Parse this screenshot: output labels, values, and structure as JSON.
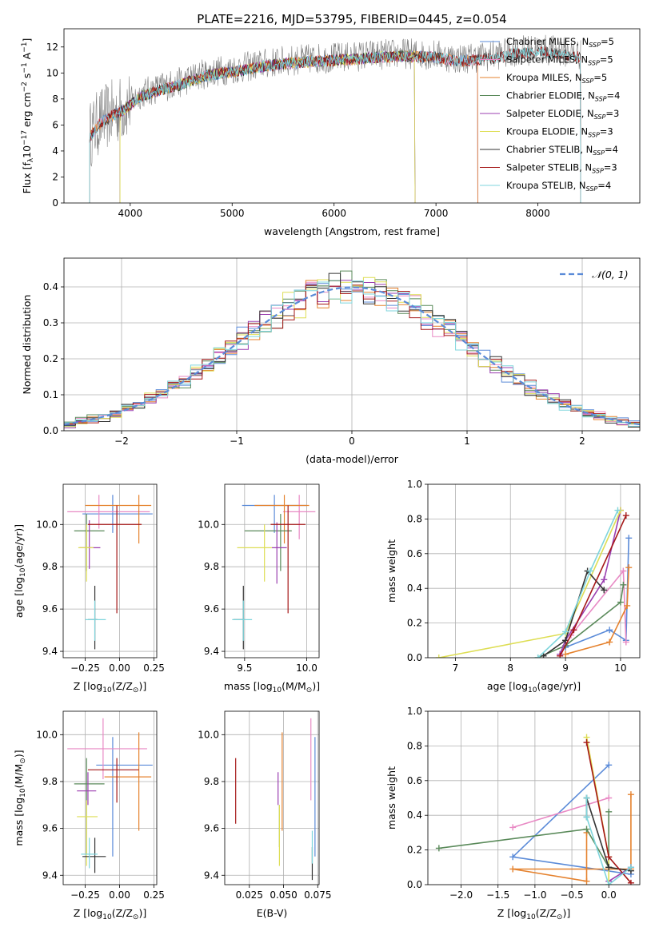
{
  "figure": {
    "title": "PLATE=2216, MJD=53795, FIBERID=0445, z=0.054"
  },
  "series_styles": [
    {
      "name": "Chabrier MILES",
      "nssp": "5",
      "color": "#5b8bd8"
    },
    {
      "name": "Salpeter MILES",
      "nssp": "5",
      "color": "#e889c4"
    },
    {
      "name": "Kroupa MILES",
      "nssp": "5",
      "color": "#e5822e"
    },
    {
      "name": "Chabrier ELODIE",
      "nssp": "4",
      "color": "#5a8a5a"
    },
    {
      "name": "Salpeter ELODIE",
      "nssp": "3",
      "color": "#9b3fb0"
    },
    {
      "name": "Kroupa ELODIE",
      "nssp": "3",
      "color": "#dede55"
    },
    {
      "name": "Chabrier STELIB",
      "nssp": "4",
      "color": "#333333"
    },
    {
      "name": "Salpeter STELIB",
      "nssp": "3",
      "color": "#a51818"
    },
    {
      "name": "Kroupa STELIB",
      "nssp": "4",
      "color": "#7fd5dc"
    }
  ],
  "chart_data": [
    {
      "id": "spectrum",
      "type": "line",
      "xlabel": "wavelength [Angstrom, rest frame]",
      "ylabel_main": "Flux [f",
      "ylabel_unit": "10",
      "ylabel_exp": "−17",
      "ylabel_rest": " erg cm",
      "xlim": [
        3350,
        9000
      ],
      "ylim": [
        0,
        13.4
      ],
      "xticks": [
        "4000",
        "5000",
        "6000",
        "7000",
        "8000"
      ],
      "yticks": [
        "0",
        "2",
        "4",
        "6",
        "8",
        "10",
        "12"
      ],
      "continuum": [
        [
          3600,
          5.2
        ],
        [
          3700,
          6.3
        ],
        [
          3800,
          6.8
        ],
        [
          3950,
          7.4
        ],
        [
          4100,
          8.4
        ],
        [
          4300,
          8.9
        ],
        [
          4500,
          9.3
        ],
        [
          4700,
          9.9
        ],
        [
          4900,
          10.2
        ],
        [
          5100,
          10.4
        ],
        [
          5300,
          10.7
        ],
        [
          5500,
          10.9
        ],
        [
          5800,
          11.1
        ],
        [
          6100,
          11.2
        ],
        [
          6400,
          11.4
        ],
        [
          6700,
          11.5
        ],
        [
          7000,
          11.4
        ],
        [
          7200,
          11.1
        ],
        [
          7400,
          11.2
        ],
        [
          7600,
          11.4
        ],
        [
          7800,
          11.7
        ],
        [
          8000,
          11.8
        ],
        [
          8200,
          11.7
        ],
        [
          8420,
          11.4
        ]
      ],
      "observed_noise": 1.2,
      "model_wavelength_ranges": {
        "MILES": [
          3540,
          7410
        ],
        "ELODIE": [
          3900,
          6795
        ],
        "STELIB": [
          3200,
          9300
        ]
      },
      "legend_nssp_label": "N",
      "legend_nssp_sub": "SSP",
      "legend_position": "upper-right"
    },
    {
      "id": "residuals",
      "type": "histogram",
      "xlabel": "(data-model)/error",
      "ylabel": "Normed distribution",
      "xlim": [
        -2.5,
        2.5
      ],
      "ylim": [
        0,
        0.48
      ],
      "xticks": [
        "−2",
        "−1",
        "0",
        "1",
        "2"
      ],
      "yticks": [
        "0.0",
        "0.1",
        "0.2",
        "0.3",
        "0.4"
      ],
      "bin_width": 0.1,
      "legend": "𝒩(0, 1)",
      "legend_position": "upper-right",
      "grid": true
    },
    {
      "id": "age_vs_Z",
      "type": "scatter",
      "xlabel": "Z [log",
      "xlabel_sub": "10",
      "xlabel_rest": "(Z/Z",
      "ylabel": "age  [log",
      "ylabel_sub": "10",
      "ylabel_rest": "(age/yr)]",
      "xlim": [
        -0.41,
        0.27
      ],
      "ylim": [
        9.37,
        10.19
      ],
      "xticks": [
        "−0.25",
        "0.00",
        "0.25"
      ],
      "yticks": [
        "9.4",
        "9.6",
        "9.8",
        "10.0"
      ],
      "points": [
        {
          "s": 0,
          "x": -0.05,
          "y": 10.05,
          "xlo": -0.27,
          "xhi": 0.24,
          "ylo": 9.96,
          "yhi": 10.14
        },
        {
          "s": 1,
          "x": -0.15,
          "y": 10.06,
          "xlo": -0.38,
          "xhi": 0.22,
          "ylo": 9.98,
          "yhi": 10.14
        },
        {
          "s": 2,
          "x": 0.14,
          "y": 10.09,
          "xlo": -0.25,
          "xhi": 0.23,
          "ylo": 9.91,
          "yhi": 10.14
        },
        {
          "s": 3,
          "x": -0.24,
          "y": 9.97,
          "xlo": -0.33,
          "xhi": -0.11,
          "ylo": 9.78,
          "yhi": 10.05
        },
        {
          "s": 4,
          "x": -0.22,
          "y": 9.89,
          "xlo": -0.29,
          "xhi": -0.14,
          "ylo": 9.79,
          "yhi": 10.02
        },
        {
          "s": 5,
          "x": -0.24,
          "y": 9.89,
          "xlo": -0.3,
          "xhi": -0.19,
          "ylo": 9.73,
          "yhi": 10.0
        },
        {
          "s": 6,
          "x": -0.18,
          "y": 9.55,
          "xlo": -0.23,
          "xhi": -0.16,
          "ylo": 9.41,
          "yhi": 9.71
        },
        {
          "s": 7,
          "x": -0.02,
          "y": 10.0,
          "xlo": -0.23,
          "xhi": 0.16,
          "ylo": 9.58,
          "yhi": 10.09
        },
        {
          "s": 8,
          "x": -0.18,
          "y": 9.55,
          "xlo": -0.25,
          "xhi": -0.1,
          "ylo": 9.45,
          "yhi": 9.64
        }
      ]
    },
    {
      "id": "age_vs_mass",
      "type": "scatter",
      "xlabel": "mass [log",
      "xlabel_sub": "10",
      "xlabel_rest": "(M/M",
      "xlim": [
        9.34,
        10.1
      ],
      "ylim": [
        9.37,
        10.19
      ],
      "xticks": [
        "9.5",
        "10.0"
      ],
      "yticks": [
        "9.4",
        "9.6",
        "9.8",
        "10.0"
      ],
      "points": [
        {
          "s": 0,
          "x": 9.74,
          "y": 10.09,
          "xlo": 9.48,
          "xhi": 10.0,
          "ylo": 9.96,
          "yhi": 10.14
        },
        {
          "s": 1,
          "x": 9.94,
          "y": 10.06,
          "xlo": 9.81,
          "xhi": 10.07,
          "ylo": 9.93,
          "yhi": 10.14
        },
        {
          "s": 2,
          "x": 9.82,
          "y": 10.09,
          "xlo": 9.58,
          "xhi": 10.02,
          "ylo": 9.91,
          "yhi": 10.14
        },
        {
          "s": 3,
          "x": 9.79,
          "y": 9.97,
          "xlo": 9.5,
          "xhi": 9.88,
          "ylo": 9.78,
          "yhi": 10.05
        },
        {
          "s": 4,
          "x": 9.76,
          "y": 9.89,
          "xlo": 9.72,
          "xhi": 9.84,
          "ylo": 9.72,
          "yhi": 10.01
        },
        {
          "s": 5,
          "x": 9.66,
          "y": 9.89,
          "xlo": 9.44,
          "xhi": 9.72,
          "ylo": 9.73,
          "yhi": 10.0
        },
        {
          "s": 6,
          "x": 9.49,
          "y": 9.55,
          "xlo": 9.41,
          "xhi": 9.5,
          "ylo": 9.41,
          "yhi": 9.71
        },
        {
          "s": 7,
          "x": 9.85,
          "y": 10.0,
          "xlo": 9.71,
          "xhi": 9.99,
          "ylo": 9.58,
          "yhi": 10.09
        },
        {
          "s": 8,
          "x": 9.49,
          "y": 9.55,
          "xlo": 9.4,
          "xhi": 9.56,
          "ylo": 9.45,
          "yhi": 9.64
        }
      ]
    },
    {
      "id": "weight_vs_age",
      "type": "line",
      "xlabel": "age  [log",
      "xlabel_sub": "10",
      "xlabel_rest": "(age/yr)]",
      "ylabel": "mass weight",
      "xlim": [
        6.5,
        10.35
      ],
      "ylim": [
        0.0,
        1.0
      ],
      "xticks": [
        "7",
        "8",
        "9",
        "10"
      ],
      "yticks": [
        "0.0",
        "0.2",
        "0.4",
        "0.6",
        "0.8",
        "1.0"
      ],
      "series": [
        {
          "s": 0,
          "x": [
            10.15,
            10.1,
            9.8,
            9.0
          ],
          "y": [
            0.69,
            0.1,
            0.16,
            0.06
          ]
        },
        {
          "s": 1,
          "x": [
            10.1,
            10.05,
            9.1,
            8.9
          ],
          "y": [
            0.09,
            0.5,
            0.13,
            0.01
          ]
        },
        {
          "s": 2,
          "x": [
            10.15,
            10.12,
            9.8,
            9.0
          ],
          "y": [
            0.52,
            0.3,
            0.09,
            0.02
          ]
        },
        {
          "s": 3,
          "x": [
            10.05,
            10.0,
            9.0,
            8.5
          ],
          "y": [
            0.42,
            0.32,
            0.07,
            0.0
          ]
        },
        {
          "s": 4,
          "x": [
            10.0,
            9.7,
            9.0,
            8.9
          ],
          "y": [
            0.85,
            0.45,
            0.1,
            0.02
          ]
        },
        {
          "s": 5,
          "x": [
            10.0,
            9.0,
            6.7
          ],
          "y": [
            0.85,
            0.14,
            0.0
          ]
        },
        {
          "s": 6,
          "x": [
            9.7,
            9.4,
            9.0,
            8.6
          ],
          "y": [
            0.39,
            0.5,
            0.1,
            0.01
          ]
        },
        {
          "s": 7,
          "x": [
            10.1,
            9.15,
            8.9
          ],
          "y": [
            0.82,
            0.16,
            0.01
          ]
        },
        {
          "s": 8,
          "x": [
            9.95,
            9.45,
            9.0,
            8.5
          ],
          "y": [
            0.85,
            0.5,
            0.15,
            0.0
          ]
        }
      ]
    },
    {
      "id": "mass_vs_Z",
      "type": "scatter",
      "xlabel": "Z [log",
      "xlabel_sub": "10",
      "xlabel_rest": "(Z/Z",
      "ylabel": "mass [log",
      "ylabel_sub": "10",
      "ylabel_rest": "(M/M",
      "xlim": [
        -0.41,
        0.27
      ],
      "ylim": [
        9.36,
        10.1
      ],
      "xticks": [
        "−0.25",
        "0.00",
        "0.25"
      ],
      "yticks": [
        "9.4",
        "9.6",
        "9.8",
        "10.0"
      ],
      "points": [
        {
          "s": 0,
          "x": -0.05,
          "y": 9.87,
          "xlo": -0.17,
          "xhi": 0.24,
          "ylo": 9.48,
          "yhi": 9.99
        },
        {
          "s": 1,
          "x": -0.12,
          "y": 9.94,
          "xlo": -0.38,
          "xhi": 0.2,
          "ylo": 9.81,
          "yhi": 10.07
        },
        {
          "s": 2,
          "x": 0.14,
          "y": 9.82,
          "xlo": -0.11,
          "xhi": 0.23,
          "ylo": 9.59,
          "yhi": 10.01
        },
        {
          "s": 3,
          "x": -0.24,
          "y": 9.79,
          "xlo": -0.33,
          "xhi": -0.11,
          "ylo": 9.49,
          "yhi": 9.9
        },
        {
          "s": 4,
          "x": -0.23,
          "y": 9.76,
          "xlo": -0.31,
          "xhi": -0.17,
          "ylo": 9.7,
          "yhi": 9.84
        },
        {
          "s": 5,
          "x": -0.24,
          "y": 9.65,
          "xlo": -0.31,
          "xhi": -0.16,
          "ylo": 9.44,
          "yhi": 9.72
        },
        {
          "s": 6,
          "x": -0.18,
          "y": 9.48,
          "xlo": -0.27,
          "xhi": -0.1,
          "ylo": 9.41,
          "yhi": 9.56
        },
        {
          "s": 7,
          "x": -0.02,
          "y": 9.85,
          "xlo": -0.23,
          "xhi": 0.14,
          "ylo": 9.71,
          "yhi": 9.9
        },
        {
          "s": 8,
          "x": -0.22,
          "y": 9.49,
          "xlo": -0.28,
          "xhi": -0.16,
          "ylo": 9.43,
          "yhi": 9.56
        }
      ]
    },
    {
      "id": "mass_vs_ebv",
      "type": "scatter",
      "xlabel": "E(B-V)",
      "xlim": [
        0.007,
        0.076
      ],
      "ylim": [
        9.36,
        10.1
      ],
      "xticks": [
        "0.025",
        "0.050",
        "0.075"
      ],
      "yticks": [
        "9.4",
        "9.6",
        "9.8",
        "10.0"
      ],
      "points": [
        {
          "s": 0,
          "x": 0.073,
          "y": 9.73,
          "ylo": 9.48,
          "yhi": 9.99
        },
        {
          "s": 1,
          "x": 0.07,
          "y": 9.9,
          "ylo": 9.72,
          "yhi": 10.07
        },
        {
          "s": 2,
          "x": 0.049,
          "y": 9.8,
          "ylo": 9.59,
          "yhi": 10.01
        },
        {
          "s": 3,
          "x": 0.047,
          "y": 9.62,
          "ylo": 9.52,
          "yhi": 9.7
        },
        {
          "s": 4,
          "x": 0.046,
          "y": 9.78,
          "ylo": 9.7,
          "yhi": 9.84
        },
        {
          "s": 5,
          "x": 0.047,
          "y": 9.58,
          "ylo": 9.44,
          "yhi": 9.7
        },
        {
          "s": 6,
          "x": 0.071,
          "y": 9.45,
          "ylo": 9.38,
          "yhi": 9.52
        },
        {
          "s": 7,
          "x": 0.015,
          "y": 9.76,
          "ylo": 9.62,
          "yhi": 9.9
        },
        {
          "s": 8,
          "x": 0.071,
          "y": 9.52,
          "ylo": 9.45,
          "yhi": 9.59
        }
      ]
    },
    {
      "id": "weight_vs_Z",
      "type": "line",
      "xlabel": "Z [log",
      "xlabel_sub": "10",
      "xlabel_rest": "(Z/Z",
      "ylabel": "mass weight",
      "xlim": [
        -2.45,
        0.42
      ],
      "ylim": [
        0.0,
        1.0
      ],
      "xticks": [
        "−2.0",
        "−1.5",
        "−1.0",
        "−0.5",
        "0.0"
      ],
      "yticks": [
        "0.0",
        "0.2",
        "0.4",
        "0.6",
        "0.8",
        "1.0"
      ],
      "series": [
        {
          "s": 0,
          "x": [
            0.0,
            -1.3,
            0.3
          ],
          "y": [
            0.69,
            0.16,
            0.06
          ]
        },
        {
          "s": 1,
          "x": [
            0.0,
            -1.3
          ],
          "y": [
            0.5,
            0.33
          ]
        },
        {
          "s": 2,
          "x": [
            0.3,
            0.3,
            -1.3,
            -0.3,
            -0.3
          ],
          "y": [
            0.52,
            0.09,
            0.09,
            0.02,
            0.3
          ]
        },
        {
          "s": 3,
          "x": [
            0.0,
            0.0,
            -0.3,
            -2.3
          ],
          "y": [
            0.42,
            0.1,
            0.32,
            0.21
          ]
        },
        {
          "s": 4,
          "x": [
            0.3,
            0.0
          ],
          "y": [
            0.1,
            0.02
          ]
        },
        {
          "s": 5,
          "x": [
            -0.3,
            0.0,
            0.0
          ],
          "y": [
            0.85,
            0.16,
            0.0
          ]
        },
        {
          "s": 6,
          "x": [
            -0.3,
            -0.3,
            0.0,
            0.3
          ],
          "y": [
            0.39,
            0.5,
            0.1,
            0.08
          ]
        },
        {
          "s": 7,
          "x": [
            -0.3,
            0.0,
            0.3
          ],
          "y": [
            0.82,
            0.16,
            0.01
          ]
        },
        {
          "s": 8,
          "x": [
            -0.3,
            -0.3,
            0.0,
            0.3
          ],
          "y": [
            0.5,
            0.39,
            0.0,
            0.1
          ]
        }
      ]
    }
  ]
}
